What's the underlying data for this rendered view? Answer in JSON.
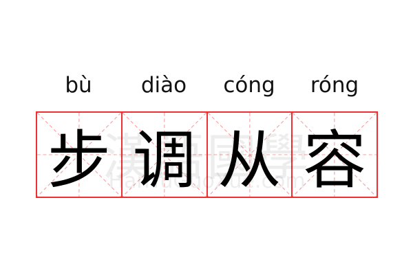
{
  "pinyin": [
    "bù",
    "diào",
    "cóng",
    "róng"
  ],
  "characters": [
    "步",
    "调",
    "从",
    "容"
  ],
  "watermark": {
    "chinese": "漢語國學",
    "latin": "HanYuGuoXue.com"
  },
  "colors": {
    "grid_border": "#f03030",
    "guide_lines": "#f5a0a0",
    "text": "#000000"
  }
}
